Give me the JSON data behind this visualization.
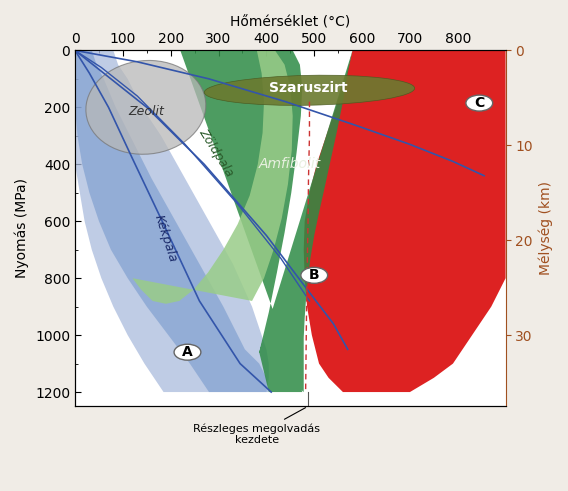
{
  "title_top": "Hőmérséklet (°C)",
  "ylabel_left": "Nyomás (MPa)",
  "ylabel_right": "Mélység (km)",
  "xlim": [
    0,
    900
  ],
  "ylim": [
    0,
    1250
  ],
  "xticks": [
    0,
    100,
    200,
    300,
    400,
    500,
    600,
    700,
    800
  ],
  "yticks_left": [
    0,
    200,
    400,
    600,
    800,
    1000,
    1200
  ],
  "label_A": "A",
  "label_B": "B",
  "label_C": "C",
  "label_zeol": "Zeolit",
  "label_zold": "Zöldpala",
  "label_kek": "Kékpala",
  "label_szaru": "Szaruszirt",
  "label_amf": "Amfibolit",
  "color_blue_dark": "#5577bb",
  "color_blue_med": "#7799cc",
  "color_blue_light": "#aabbdd",
  "color_green_light": "#99cc88",
  "color_green_dark": "#2e8b45",
  "color_gray": "#b8b8b8",
  "color_red": "#dd2222",
  "color_olive": "#6b7a30",
  "color_background": "#f0ece6",
  "color_right_axis": "#a05020"
}
